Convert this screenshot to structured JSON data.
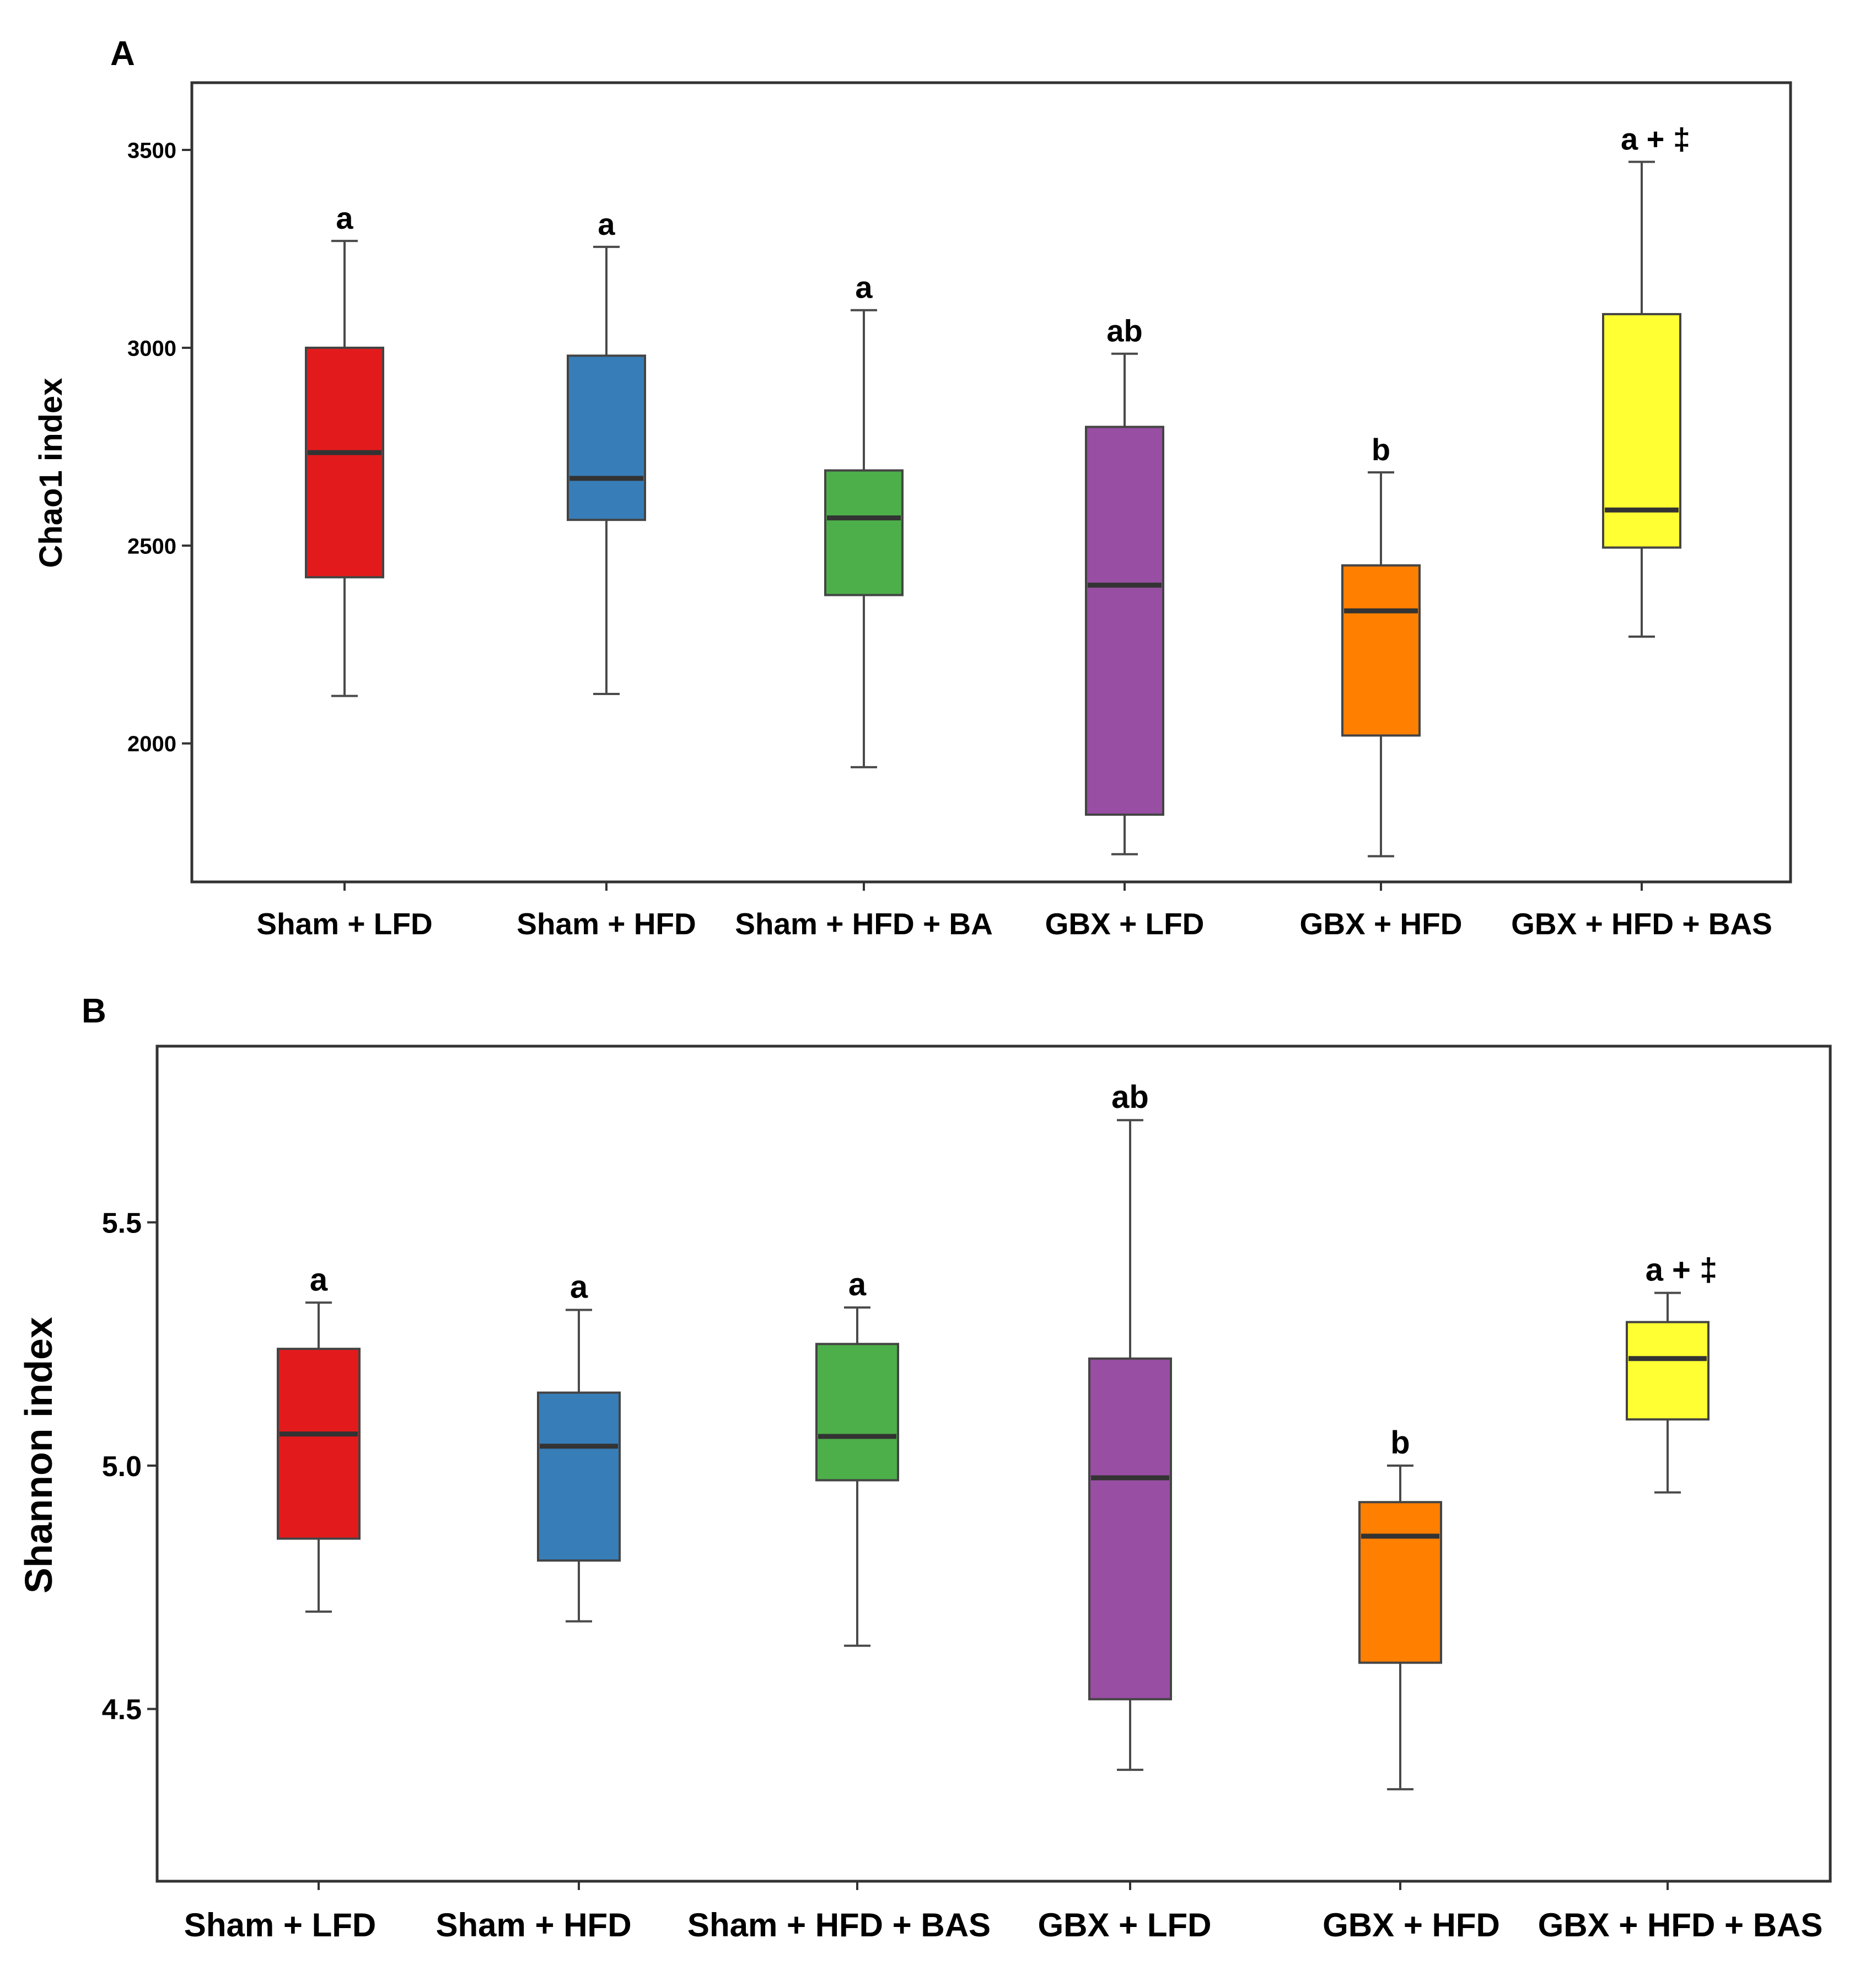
{
  "chart_data": [
    {
      "panel_label": "A",
      "type": "box",
      "ylabel": "Chao1 index",
      "ylim": [
        1650,
        3670
      ],
      "yticks": [
        {
          "value": 2000,
          "label": "2000"
        },
        {
          "value": 2500,
          "label": "2500"
        },
        {
          "value": 3000,
          "label": "3000"
        },
        {
          "value": 3500,
          "label": "3500"
        }
      ],
      "categories": [
        "Sham + LFD",
        "Sham + HFD",
        "Sham + HFD + BA",
        "GBX + LFD",
        "GBX + HFD",
        "GBX + HFD + BAS"
      ],
      "colors": [
        "#e31a1c",
        "#377eb8",
        "#4daf4a",
        "#984ea3",
        "#ff7f00",
        "#ffff33"
      ],
      "boxes": [
        {
          "min": 2120,
          "q1": 2420,
          "median": 2735,
          "q3": 3000,
          "max": 3270
        },
        {
          "min": 2125,
          "q1": 2565,
          "median": 2670,
          "q3": 2980,
          "max": 3255
        },
        {
          "min": 1940,
          "q1": 2375,
          "median": 2570,
          "q3": 2690,
          "max": 3095
        },
        {
          "min": 1720,
          "q1": 1820,
          "median": 2400,
          "q3": 2800,
          "max": 2985
        },
        {
          "min": 1715,
          "q1": 2020,
          "median": 2335,
          "q3": 2450,
          "max": 2685
        },
        {
          "min": 2270,
          "q1": 2495,
          "median": 2590,
          "q3": 3085,
          "max": 3470
        }
      ],
      "annotations": [
        "a",
        "a",
        "a",
        "ab",
        "b",
        "a + ‡"
      ]
    },
    {
      "panel_label": "B",
      "type": "box",
      "ylabel": "Shannon index",
      "ylim": [
        4.146,
        5.862
      ],
      "yticks": [
        {
          "value": 4.5,
          "label": "4.5"
        },
        {
          "value": 5.0,
          "label": "5.0"
        },
        {
          "value": 5.5,
          "label": "5.5"
        }
      ],
      "categories": [
        "Sham + LFD",
        "Sham + HFD",
        "Sham + HFD + BAS",
        "GBX + LFD",
        "GBX + HFD",
        "GBX + HFD + BAS"
      ],
      "colors": [
        "#e31a1c",
        "#377eb8",
        "#4daf4a",
        "#984ea3",
        "#ff7f00",
        "#ffff33"
      ],
      "boxes": [
        {
          "min": 4.7,
          "q1": 4.85,
          "median": 5.065,
          "q3": 5.24,
          "max": 5.335
        },
        {
          "min": 4.68,
          "q1": 4.805,
          "median": 5.04,
          "q3": 5.15,
          "max": 5.32
        },
        {
          "min": 4.63,
          "q1": 4.97,
          "median": 5.06,
          "q3": 5.25,
          "max": 5.325
        },
        {
          "min": 4.375,
          "q1": 4.52,
          "median": 4.975,
          "q3": 5.22,
          "max": 5.71
        },
        {
          "min": 4.335,
          "q1": 4.595,
          "median": 4.855,
          "q3": 4.925,
          "max": 5.0
        },
        {
          "min": 4.945,
          "q1": 5.095,
          "median": 5.22,
          "q3": 5.295,
          "max": 5.355
        }
      ],
      "annotations": [
        "a",
        "a",
        "a",
        "ab",
        "b",
        "a + ‡"
      ]
    }
  ]
}
